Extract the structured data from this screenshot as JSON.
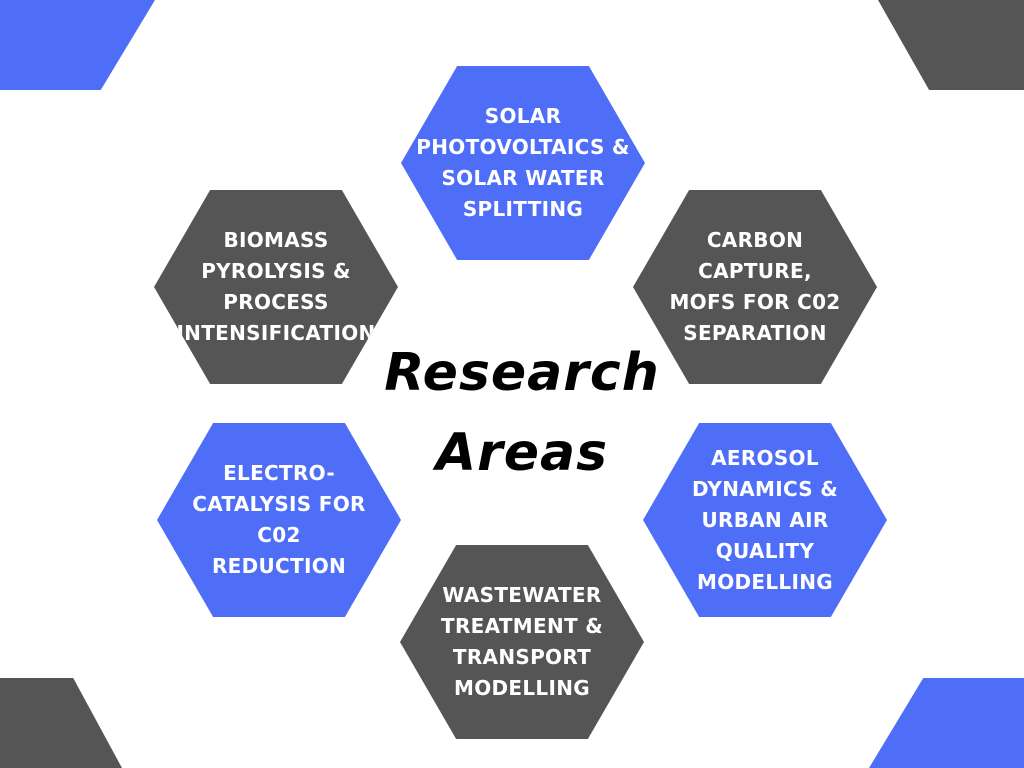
{
  "colors": {
    "blue": "#4f6ef7",
    "gray": "#555555",
    "title": "#000000",
    "background": "#ffffff"
  },
  "title": "Research\nAreas",
  "areas": [
    {
      "label": "Solar\nphotovoltaics &\nsolar water\nsplitting",
      "color": "blue"
    },
    {
      "label": "Biomass\npyrolysis &\nprocess\nintensification",
      "color": "gray"
    },
    {
      "label": "Carbon\ncapture,\nMOFs for C02\nseparation",
      "color": "gray"
    },
    {
      "label": "Electro-\ncatalysis for\nC02\nreduction",
      "color": "blue"
    },
    {
      "label": "Aerosol\ndynamics &\nurban air\nquality\nmodelling",
      "color": "blue"
    },
    {
      "label": "Wastewater\ntreatment &\ntransport\nmodelling",
      "color": "gray"
    }
  ]
}
